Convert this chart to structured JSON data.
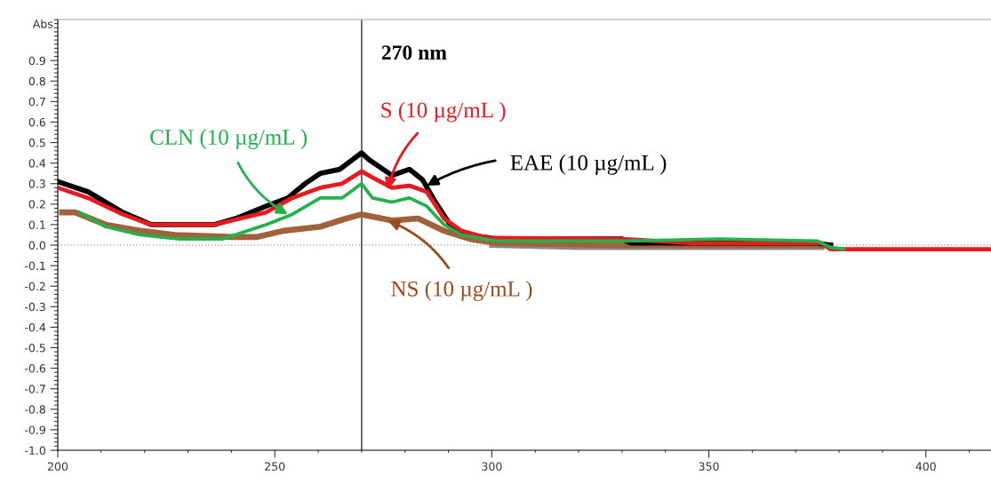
{
  "chart_data": {
    "type": "line",
    "ylabel": "Abs",
    "xlim": [
      200,
      415
    ],
    "xticks": [
      200,
      250,
      300,
      350,
      400
    ],
    "ylim": [
      -1.0,
      1.1
    ],
    "yticks": [
      {
        "value": -1,
        "label": "-1.0"
      },
      -0.9,
      -0.8,
      -0.7,
      -0.6,
      -0.5,
      -0.4,
      -0.3,
      -0.2,
      -0.1,
      {
        "value": 0,
        "label": "0.0"
      },
      0.1,
      0.2,
      0.3,
      0.4,
      0.5,
      0.6,
      0.7,
      0.8,
      0.9
    ],
    "grid": false,
    "marker": "none",
    "line_style": "solid",
    "ref_lines": [
      {
        "axis": "y",
        "value": 0,
        "color": "#b0b0b0",
        "line_style": "dotted"
      },
      {
        "axis": "x",
        "value": 270,
        "label": "270 nm",
        "color": "#555555",
        "line_style": "solid"
      }
    ],
    "series": [
      {
        "color": "#8a8a8a",
        "x": [
          300,
          320,
          340,
          360,
          376
        ],
        "values": [
          0.0,
          -0.01,
          -0.01,
          -0.01,
          -0.01
        ]
      },
      {
        "color": "#a0623a",
        "x": [
          201,
          204,
          211,
          219,
          227,
          240,
          246,
          252,
          260.5,
          266.5,
          270,
          277,
          283,
          289,
          295,
          301,
          330,
          378
        ],
        "values": [
          0.16,
          0.16,
          0.1,
          0.07,
          0.05,
          0.04,
          0.04,
          0.07,
          0.09,
          0.13,
          0.15,
          0.12,
          0.13,
          0.07,
          0.03,
          0.01,
          0.0,
          0.0
        ]
      },
      {
        "color": "#000000",
        "x": [
          200,
          207,
          215,
          221.5,
          236,
          241,
          248,
          253,
          257,
          260.5,
          265,
          270,
          271.5,
          277,
          281,
          284,
          287,
          291,
          295,
          301,
          330,
          332,
          375,
          378
        ],
        "values": [
          0.31,
          0.26,
          0.16,
          0.1,
          0.1,
          0.13,
          0.19,
          0.23,
          0.3,
          0.35,
          0.37,
          0.45,
          0.42,
          0.34,
          0.37,
          0.32,
          0.21,
          0.08,
          0.05,
          0.03,
          0.03,
          0.01,
          0.01,
          0.0
        ]
      },
      {
        "color": "#e8191f",
        "x": [
          200,
          207,
          215,
          221.5,
          236,
          248,
          254,
          260.5,
          265.5,
          270,
          272.5,
          277,
          281,
          285,
          289,
          293,
          299,
          330,
          346,
          376,
          378,
          415
        ],
        "values": [
          0.28,
          0.23,
          0.15,
          0.1,
          0.1,
          0.16,
          0.23,
          0.28,
          0.3,
          0.36,
          0.33,
          0.28,
          0.29,
          0.26,
          0.13,
          0.07,
          0.035,
          0.03,
          0.01,
          0.01,
          -0.02,
          -0.02
        ]
      },
      {
        "color": "#22b14c",
        "x": [
          205,
          211,
          219,
          228,
          238,
          248,
          254,
          260.5,
          265.5,
          270,
          272.5,
          277,
          281,
          285,
          289,
          293,
          301,
          331,
          352.5,
          375,
          378,
          381
        ],
        "values": [
          0.16,
          0.09,
          0.05,
          0.03,
          0.03,
          0.1,
          0.15,
          0.23,
          0.23,
          0.3,
          0.23,
          0.21,
          0.23,
          0.19,
          0.1,
          0.05,
          0.02,
          0.02,
          0.03,
          0.02,
          -0.01,
          -0.02
        ]
      }
    ],
    "annotations": [
      {
        "text": "CLN (10 µg/mL )",
        "x": 253,
        "y": 0.15
      },
      {
        "text": "S (10 µg/mL )",
        "x": 276,
        "y": 0.27
      },
      {
        "text": "EAE (10 µg/mL )",
        "x": 285,
        "y": 0.29
      },
      {
        "text": "NS (10 µg/mL )",
        "x": 276,
        "y": 0.12
      }
    ]
  }
}
